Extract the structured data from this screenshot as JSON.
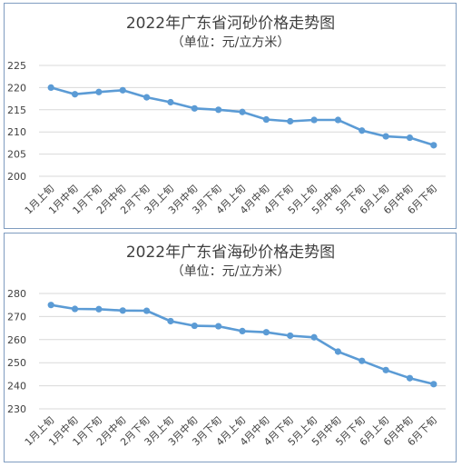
{
  "chart_data": [
    {
      "type": "line",
      "title": "2022年广东省河砂价格走势图",
      "subtitle": "（单位：元/立方米）",
      "categories": [
        "1月上旬",
        "1月中旬",
        "1月下旬",
        "2月中旬",
        "2月下旬",
        "3月上旬",
        "3月中旬",
        "3月下旬",
        "4月上旬",
        "4月中旬",
        "4月下旬",
        "5月上旬",
        "5月中旬",
        "5月下旬",
        "6月上旬",
        "6月中旬",
        "6月下旬"
      ],
      "yticks": [
        "200",
        "205",
        "210",
        "215",
        "220",
        "225"
      ],
      "ylim": [
        200,
        225
      ],
      "grid": true,
      "legend": "none",
      "series": [
        {
          "values": [
            220.0,
            218.5,
            219.0,
            219.4,
            217.8,
            216.7,
            215.3,
            215.0,
            214.5,
            212.8,
            212.4,
            212.7,
            212.7,
            210.3,
            209.0,
            208.7,
            207.0
          ]
        }
      ],
      "colors": {
        "line": "#5b9bd5"
      }
    },
    {
      "type": "line",
      "title": "2022年广东省海砂价格走势图",
      "subtitle": "（单位：元/立方米）",
      "categories": [
        "1月上旬",
        "1月中旬",
        "1月下旬",
        "2月中旬",
        "2月下旬",
        "3月上旬",
        "3月中旬",
        "3月下旬",
        "4月上旬",
        "4月中旬",
        "4月下旬",
        "5月上旬",
        "5月中旬",
        "5月下旬",
        "6月上旬",
        "6月中旬",
        "6月下旬"
      ],
      "yticks": [
        "230",
        "240",
        "250",
        "260",
        "270",
        "280"
      ],
      "ylim": [
        230,
        280
      ],
      "grid": true,
      "legend": "none",
      "series": [
        {
          "values": [
            275.0,
            273.3,
            273.2,
            272.6,
            272.5,
            268.0,
            266.0,
            265.8,
            263.7,
            263.2,
            261.7,
            261.0,
            254.8,
            250.8,
            246.8,
            243.3,
            240.7
          ]
        }
      ],
      "colors": {
        "line": "#5b9bd5"
      }
    }
  ]
}
